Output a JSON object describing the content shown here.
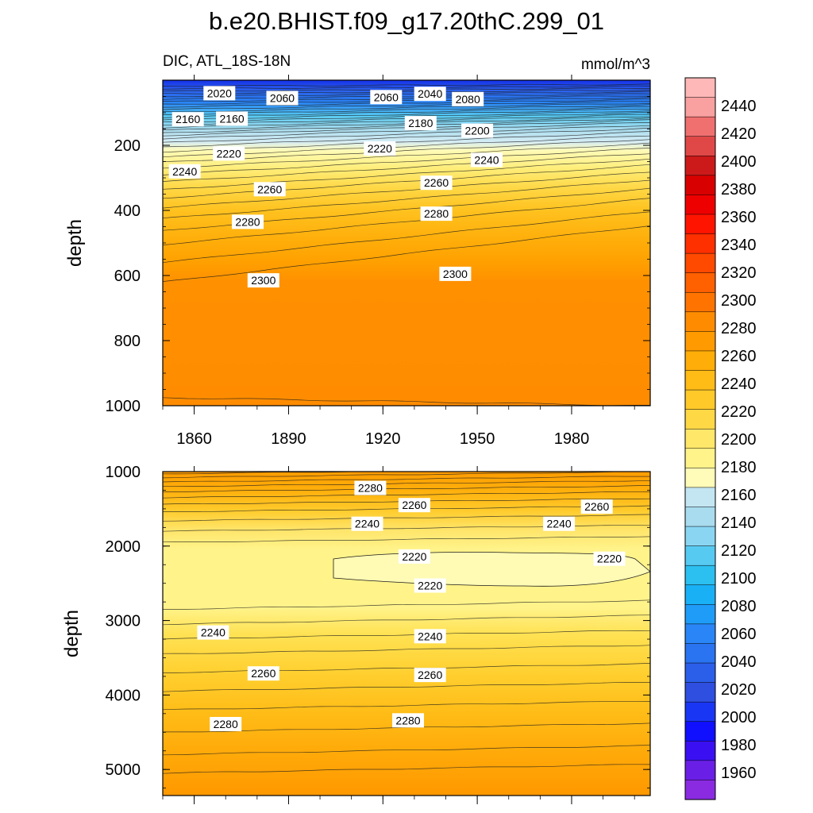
{
  "chart_data": {
    "type": "contour",
    "title": "b.e20.BHIST.f09_g17.20thC.299_01",
    "subtitle_left": "DIC, ATL_18S-18N",
    "subtitle_right": "mmol/m^3",
    "colorbar": {
      "levels": [
        "1960",
        "1980",
        "2000",
        "2020",
        "2040",
        "2060",
        "2080",
        "2100",
        "2120",
        "2140",
        "2160",
        "2180",
        "2200",
        "2220",
        "2240",
        "2260",
        "2280",
        "2300",
        "2320",
        "2340",
        "2360",
        "2380",
        "2400",
        "2420",
        "2440"
      ],
      "colors": [
        "#8a2be2",
        "#6a1fe6",
        "#3a10f2",
        "#1010ff",
        "#1a36f5",
        "#2f4fe0",
        "#2b5fea",
        "#2a74f2",
        "#2a86f6",
        "#1f9cf8",
        "#19b0f6",
        "#2cc0f0",
        "#57caf2",
        "#8ad6f2",
        "#a9dcee",
        "#c4e6f2",
        "#fffbb8",
        "#fff38a",
        "#ffe76a",
        "#ffd846",
        "#ffc92a",
        "#ffbb16",
        "#ffad08",
        "#ff9a00",
        "#ff8c00",
        "#ff7400",
        "#ff6000",
        "#ff4a00",
        "#ff3000",
        "#ff1400",
        "#ee0000",
        "#d80000",
        "#cc1a1a",
        "#e04848",
        "#f07070",
        "#f9a0a0",
        "#ffb8b8"
      ]
    },
    "panels": [
      {
        "name": "upper",
        "y_title": "depth",
        "y_ticks": [
          "200",
          "400",
          "600",
          "800",
          "1000"
        ],
        "x_ticks": [
          "1860",
          "1890",
          "1920",
          "1950",
          "1980"
        ],
        "ylim": [
          0,
          1000
        ],
        "xlim": [
          1850,
          2005
        ],
        "contour_labels": [
          {
            "text": "2020",
            "year": 1868,
            "depth": 40
          },
          {
            "text": "2060",
            "year": 1888,
            "depth": 55
          },
          {
            "text": "2060",
            "year": 1921,
            "depth": 52
          },
          {
            "text": "2040",
            "year": 1935,
            "depth": 42
          },
          {
            "text": "2080",
            "year": 1947,
            "depth": 58
          },
          {
            "text": "2160",
            "year": 1858,
            "depth": 120
          },
          {
            "text": "2160",
            "year": 1872,
            "depth": 118
          },
          {
            "text": "2180",
            "year": 1932,
            "depth": 132
          },
          {
            "text": "2200",
            "year": 1950,
            "depth": 155
          },
          {
            "text": "2220",
            "year": 1871,
            "depth": 225
          },
          {
            "text": "2220",
            "year": 1919,
            "depth": 210
          },
          {
            "text": "2240",
            "year": 1857,
            "depth": 280
          },
          {
            "text": "2240",
            "year": 1953,
            "depth": 245
          },
          {
            "text": "2260",
            "year": 1884,
            "depth": 335
          },
          {
            "text": "2260",
            "year": 1937,
            "depth": 315
          },
          {
            "text": "2280",
            "year": 1877,
            "depth": 435
          },
          {
            "text": "2280",
            "year": 1937,
            "depth": 410
          },
          {
            "text": "2300",
            "year": 1882,
            "depth": 615
          },
          {
            "text": "2300",
            "year": 1943,
            "depth": 595
          }
        ]
      },
      {
        "name": "lower",
        "y_title": "depth",
        "y_ticks": [
          "1000",
          "2000",
          "3000",
          "4000",
          "5000"
        ],
        "x_ticks": [],
        "ylim": [
          1000,
          5350
        ],
        "xlim": [
          1850,
          2005
        ],
        "contour_labels": [
          {
            "text": "2280",
            "year": 1916,
            "depth": 1220
          },
          {
            "text": "2260",
            "year": 1930,
            "depth": 1450
          },
          {
            "text": "2260",
            "year": 1988,
            "depth": 1470
          },
          {
            "text": "2240",
            "year": 1915,
            "depth": 1700
          },
          {
            "text": "2240",
            "year": 1976,
            "depth": 1700
          },
          {
            "text": "2220",
            "year": 1930,
            "depth": 2140
          },
          {
            "text": "2220",
            "year": 1992,
            "depth": 2170
          },
          {
            "text": "2220",
            "year": 1935,
            "depth": 2530
          },
          {
            "text": "2240",
            "year": 1866,
            "depth": 3160
          },
          {
            "text": "2240",
            "year": 1935,
            "depth": 3210
          },
          {
            "text": "2260",
            "year": 1882,
            "depth": 3710
          },
          {
            "text": "2260",
            "year": 1935,
            "depth": 3730
          },
          {
            "text": "2280",
            "year": 1870,
            "depth": 4390
          },
          {
            "text": "2280",
            "year": 1928,
            "depth": 4340
          }
        ]
      }
    ]
  }
}
